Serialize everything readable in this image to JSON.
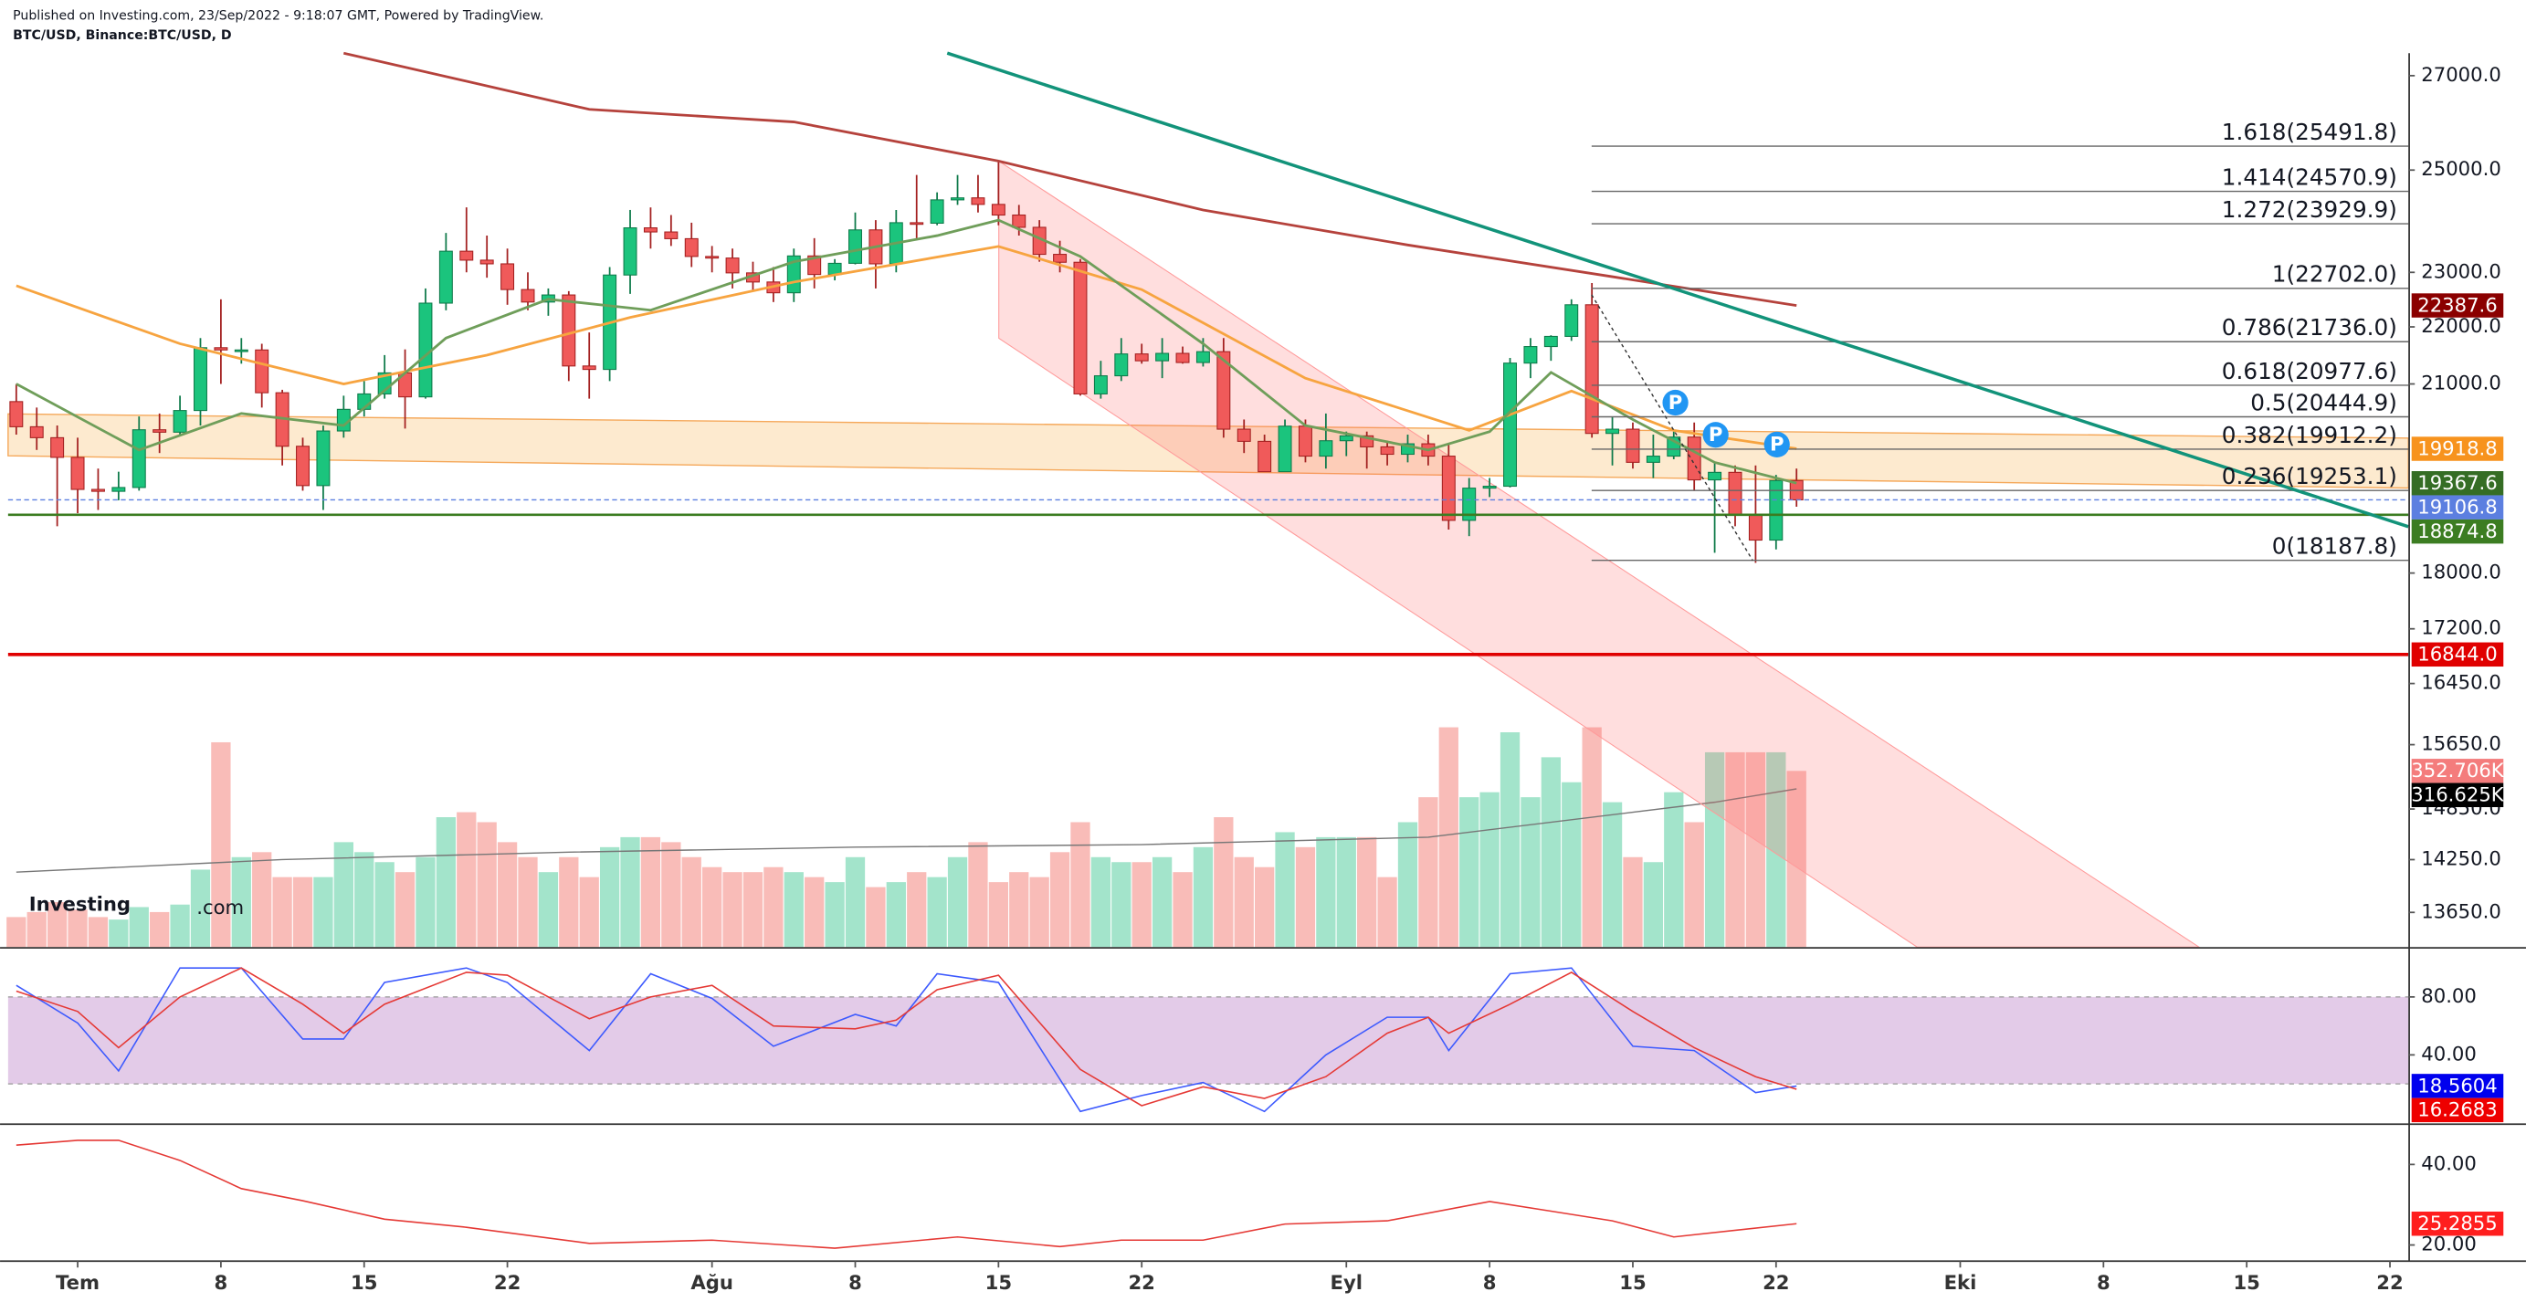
{
  "header": {
    "published": "Published on Investing.com, 23/Sep/2022 - 9:18:07 GMT, Powered by TradingView.",
    "symbol": "BTC/USD, Binance:BTC/USD, D"
  },
  "logo": {
    "name": "Investing",
    "suffix": ".com"
  },
  "chart_data": {
    "type": "candlestick",
    "log_scale": true,
    "x": [
      -3,
      -2,
      -1,
      0,
      1,
      2,
      3,
      4,
      5,
      6,
      7,
      8,
      9,
      10,
      11,
      12,
      13,
      14,
      15,
      16,
      17,
      18,
      19,
      20,
      21,
      22,
      23,
      24,
      25,
      26,
      27,
      28,
      29,
      30,
      31,
      32,
      33,
      34,
      35,
      36,
      37,
      38,
      39,
      40,
      41,
      42,
      43,
      44,
      45,
      46,
      47,
      48,
      49,
      50,
      51,
      52,
      53,
      54,
      55,
      56,
      57,
      58,
      59,
      60,
      61,
      62,
      63,
      64,
      65,
      66,
      67,
      68,
      69,
      70,
      71,
      72,
      73,
      74,
      75,
      76,
      77,
      78,
      79,
      80,
      81,
      82,
      83,
      84
    ],
    "open": [
      20700,
      20280,
      20100,
      19780,
      19270,
      19240,
      19300,
      20230,
      20190,
      20550,
      21630,
      21590,
      21590,
      20850,
      19960,
      19330,
      20210,
      20570,
      20830,
      21190,
      20780,
      22430,
      23400,
      23230,
      23160,
      22680,
      22450,
      22580,
      21310,
      21250,
      22950,
      23850,
      23770,
      23640,
      23300,
      23270,
      22990,
      22820,
      22620,
      23310,
      22960,
      23170,
      23810,
      23160,
      23950,
      23940,
      24400,
      24440,
      24310,
      24100,
      23860,
      23340,
      23190,
      20830,
      21140,
      21520,
      21400,
      21530,
      21370,
      21560,
      20240,
      20040,
      19550,
      20290,
      19800,
      20050,
      20130,
      19950,
      19830,
      20000,
      19800,
      18790,
      19290,
      19320,
      21360,
      21650,
      21830,
      22400,
      20170,
      20240,
      19700,
      19800,
      20110,
      19420,
      19540,
      18880,
      18490,
      19410
    ],
    "high": [
      21000,
      20600,
      20300,
      20100,
      19600,
      19550,
      20450,
      20500,
      20800,
      21800,
      22500,
      21800,
      21700,
      20900,
      20100,
      20300,
      20800,
      21050,
      21500,
      21600,
      22700,
      23750,
      24250,
      23700,
      23450,
      23000,
      22700,
      22650,
      21900,
      23100,
      24200,
      24250,
      24100,
      23950,
      23500,
      23450,
      23200,
      23100,
      23450,
      23650,
      23250,
      24150,
      24000,
      24200,
      24900,
      24550,
      24900,
      24900,
      25200,
      24300,
      24000,
      23600,
      23250,
      21400,
      21800,
      21700,
      21800,
      21650,
      21800,
      21800,
      20400,
      20150,
      20400,
      20400,
      20500,
      20200,
      20200,
      20050,
      20150,
      20150,
      20000,
      19450,
      19450,
      21450,
      21800,
      21850,
      22500,
      22800,
      20450,
      20350,
      20150,
      20200,
      20350,
      19700,
      19650,
      19650,
      19500,
      19600
    ],
    "low": [
      20150,
      19900,
      18700,
      18900,
      18950,
      19100,
      19250,
      19850,
      20150,
      20300,
      21000,
      21350,
      20600,
      19650,
      19250,
      18950,
      20100,
      20450,
      20750,
      20250,
      20750,
      22300,
      23000,
      22900,
      22400,
      22300,
      22200,
      21050,
      20750,
      21050,
      22600,
      23450,
      23500,
      23100,
      23000,
      22700,
      22650,
      22450,
      22450,
      22700,
      22850,
      23150,
      22700,
      23000,
      23650,
      23900,
      24300,
      24150,
      23900,
      23700,
      23200,
      23000,
      20800,
      20750,
      21050,
      21350,
      21100,
      21350,
      21300,
      20100,
      19850,
      19550,
      19550,
      19700,
      19600,
      19800,
      19600,
      19650,
      19700,
      19650,
      18650,
      18550,
      19150,
      19300,
      21100,
      21400,
      21750,
      20100,
      19650,
      19600,
      19450,
      19750,
      19250,
      18300,
      18700,
      18150,
      18350,
      19000
    ],
    "close": [
      20280,
      20100,
      19780,
      19270,
      19240,
      19300,
      20230,
      20190,
      20550,
      21630,
      21590,
      21590,
      20850,
      19960,
      19330,
      20210,
      20570,
      20830,
      21190,
      20780,
      22430,
      23400,
      23230,
      23160,
      22680,
      22450,
      22580,
      21310,
      21250,
      22950,
      23850,
      23770,
      23640,
      23300,
      23270,
      22990,
      22820,
      22620,
      23310,
      22960,
      23170,
      23810,
      23160,
      23950,
      23940,
      24400,
      24440,
      24310,
      24100,
      23860,
      23340,
      23190,
      20830,
      21140,
      21520,
      21400,
      21530,
      21370,
      21560,
      20240,
      20040,
      19550,
      20290,
      19800,
      20050,
      20130,
      19950,
      19830,
      20000,
      19800,
      18790,
      19290,
      19320,
      21360,
      21650,
      21830,
      22400,
      20170,
      20240,
      19700,
      19800,
      20110,
      19420,
      19540,
      18880,
      18490,
      19410,
      19107
    ],
    "up_color": "#1bc47d",
    "down_color": "#f05a5a",
    "xlim": [
      -3.4,
      113.9
    ],
    "xticks": [
      {
        "value": 0,
        "label": "Tem"
      },
      {
        "value": 7,
        "label": "8"
      },
      {
        "value": 14,
        "label": "15"
      },
      {
        "value": 21,
        "label": "22"
      },
      {
        "value": 31,
        "label": "Ağu"
      },
      {
        "value": 38,
        "label": "8"
      },
      {
        "value": 45,
        "label": "15"
      },
      {
        "value": 52,
        "label": "22"
      },
      {
        "value": 62,
        "label": "Eyl"
      },
      {
        "value": 69,
        "label": "8"
      },
      {
        "value": 76,
        "label": "15"
      },
      {
        "value": 83,
        "label": "22"
      },
      {
        "value": 92,
        "label": "Eki"
      },
      {
        "value": 99,
        "label": "8"
      },
      {
        "value": 106,
        "label": "15"
      },
      {
        "value": 113,
        "label": "22"
      }
    ],
    "ylim": [
      13270,
      27500
    ],
    "yticks": [
      {
        "value": 27000,
        "label": "27000.0"
      },
      {
        "value": 25000,
        "label": "25000.0"
      },
      {
        "value": 23000,
        "label": "23000.0"
      },
      {
        "value": 22000,
        "label": "22000.0"
      },
      {
        "value": 21000,
        "label": "21000.0"
      },
      {
        "value": 18000,
        "label": "18000.0"
      },
      {
        "value": 17200,
        "label": "17200.0"
      },
      {
        "value": 16450,
        "label": "16450.0"
      },
      {
        "value": 15650,
        "label": "15650.0"
      },
      {
        "value": 14850,
        "label": "14850.0"
      },
      {
        "value": 14250,
        "label": "14250.0"
      },
      {
        "value": 13650,
        "label": "13650.0"
      }
    ],
    "series": [
      {
        "color": "#b5423c",
        "x": [
          13,
          25,
          35,
          45,
          55,
          65,
          75,
          84
        ],
        "values": [
          27500,
          26270,
          26000,
          25185,
          24200,
          23520,
          22920,
          22387.6
        ]
      },
      {
        "color": "#f7a440",
        "x": [
          -3,
          5,
          13,
          20,
          27,
          35,
          45,
          52,
          60,
          68,
          73,
          78,
          84
        ],
        "values": [
          22750,
          21700,
          21000,
          21500,
          22170,
          22820,
          23490,
          22680,
          21100,
          20220,
          20880,
          20220,
          19918.8
        ]
      },
      {
        "color": "#6f9e5a",
        "x": [
          -3,
          3,
          8,
          13,
          18,
          23,
          28,
          35,
          42,
          45,
          49,
          55,
          60,
          66,
          69,
          72,
          76,
          80,
          84
        ],
        "values": [
          21000,
          19900,
          20500,
          20300,
          21800,
          22500,
          22300,
          23200,
          23700,
          24000,
          23300,
          21700,
          20300,
          19900,
          20200,
          21200,
          20400,
          19700,
          19367.6
        ]
      }
    ],
    "fib_levels": [
      {
        "label": "1.618(25491.8)",
        "value": 25491.8
      },
      {
        "label": "1.414(24570.9)",
        "value": 24570.9
      },
      {
        "label": "1.272(23929.9)",
        "value": 23929.9
      },
      {
        "label": "1(22702.0)",
        "value": 22702.0
      },
      {
        "label": "0.786(21736.0)",
        "value": 21736.0
      },
      {
        "label": "0.618(20977.6)",
        "value": 20977.6
      },
      {
        "label": "0.5(20444.9)",
        "value": 20444.9
      },
      {
        "label": "0.382(19912.2)",
        "value": 19912.2
      },
      {
        "label": "0.236(19253.1)",
        "value": 19253.1
      },
      {
        "label": "0(18187.8)",
        "value": 18187.8
      }
    ],
    "price_tags": [
      {
        "value": 22387.6,
        "label": "22387.6",
        "color": "#8b0000"
      },
      {
        "value": 19918.8,
        "label": "19918.8",
        "color": "#f7931e"
      },
      {
        "value": 19367.6,
        "label": "19367.6",
        "color": "#356d25"
      },
      {
        "value": 19106.8,
        "label": "19106.8",
        "color": "#5c7fe0",
        "line_width": 0.8
      },
      {
        "value": 18874.8,
        "label": "18874.8",
        "color": "#3c7d22",
        "line_width": 1.5
      },
      {
        "value": 16844.0,
        "label": "16844.0",
        "color": "#e00000",
        "line_width": 2
      }
    ],
    "volume": {
      "ylim": [
        0,
        1790
      ],
      "up_color": "#a3e4cb",
      "down_color": "#f9bcb8",
      "values": [
        60,
        70,
        90,
        75,
        60,
        55,
        80,
        70,
        85,
        155,
        410,
        180,
        190,
        140,
        140,
        140,
        210,
        190,
        170,
        150,
        180,
        260,
        270,
        250,
        210,
        180,
        150,
        180,
        140,
        200,
        220,
        220,
        210,
        180,
        160,
        150,
        150,
        160,
        150,
        140,
        130,
        180,
        120,
        130,
        150,
        140,
        180,
        210,
        130,
        150,
        140,
        190,
        250,
        180,
        170,
        170,
        180,
        150,
        200,
        260,
        180,
        160,
        230,
        200,
        220,
        220,
        220,
        140,
        250,
        300,
        440,
        300,
        310,
        430,
        300,
        380,
        330,
        440,
        290,
        180,
        170,
        310,
        250,
        390,
        390,
        390,
        390,
        352.706
      ],
      "ma": {
        "color": "#777777",
        "x": [
          -3,
          10,
          24,
          38,
          52,
          66,
          80,
          84
        ],
        "values": [
          150,
          175,
          190,
          200,
          205,
          220,
          290,
          316.625
        ]
      },
      "tags": [
        {
          "value": 352.706,
          "label": "352.706K",
          "color": "#f47c7c"
        },
        {
          "value": 316.625,
          "label": "316.625K",
          "color": "#000000"
        }
      ]
    },
    "stoch": {
      "ylim": [
        -6.7,
        112.2
      ],
      "band": [
        20,
        80
      ],
      "band_color": "#e3cbe8",
      "yticks": [
        {
          "value": 80,
          "label": "80.00"
        },
        {
          "value": 40,
          "label": "40.00"
        }
      ],
      "series": [
        {
          "color": "#3d5afe",
          "x": [
            -3,
            0,
            2,
            5,
            8,
            11,
            13,
            15,
            19,
            21,
            25,
            28,
            31,
            34,
            38,
            40,
            42,
            45,
            49,
            52,
            55,
            58,
            61,
            64,
            66,
            67,
            70,
            73,
            76,
            79,
            82,
            84
          ],
          "values": [
            88,
            62,
            29,
            100,
            100,
            51,
            51,
            90,
            100,
            90,
            43,
            96,
            79,
            46,
            68,
            60,
            96,
            90,
            1,
            12,
            21,
            1,
            40,
            66,
            66,
            43,
            96,
            100,
            46,
            43,
            14,
            18.5604
          ]
        },
        {
          "color": "#e53935",
          "x": [
            -3,
            0,
            2,
            5,
            8,
            11,
            13,
            15,
            19,
            21,
            25,
            28,
            31,
            34,
            38,
            40,
            42,
            45,
            49,
            52,
            55,
            58,
            61,
            64,
            66,
            67,
            70,
            73,
            76,
            79,
            82,
            84
          ],
          "values": [
            84,
            70,
            45,
            80,
            100,
            75,
            55,
            75,
            97,
            95,
            65,
            80,
            88,
            60,
            58,
            64,
            85,
            95,
            30,
            5,
            18,
            10,
            25,
            55,
            66,
            55,
            75,
            97,
            70,
            45,
            25,
            16.2683
          ]
        }
      ],
      "tags": [
        {
          "value": 18.5604,
          "label": "18.5604",
          "color": "#0000ee"
        },
        {
          "value": 16.2683,
          "label": "16.2683",
          "color": "#ee0000"
        }
      ]
    },
    "rsi": {
      "ylim": [
        16.4,
        49.6
      ],
      "yticks": [
        {
          "value": 40,
          "label": "40.00"
        },
        {
          "value": 20,
          "label": "20.00"
        }
      ],
      "series": [
        {
          "color": "#e53935",
          "x": [
            -3,
            0,
            2,
            5,
            8,
            11,
            15,
            19,
            25,
            31,
            37,
            43,
            48,
            51,
            55,
            59,
            64,
            69,
            72,
            75,
            78,
            84
          ],
          "values": [
            44.8,
            46,
            46,
            41,
            34,
            31,
            26.4,
            24.4,
            20.4,
            21.2,
            19.2,
            22,
            19.6,
            21.2,
            21.2,
            25.2,
            26,
            30.8,
            28.4,
            26,
            22,
            25.2855
          ]
        }
      ],
      "tags": [
        {
          "value": 25.2855,
          "label": "25.2855",
          "color": "#ff1e1e"
        }
      ]
    }
  }
}
